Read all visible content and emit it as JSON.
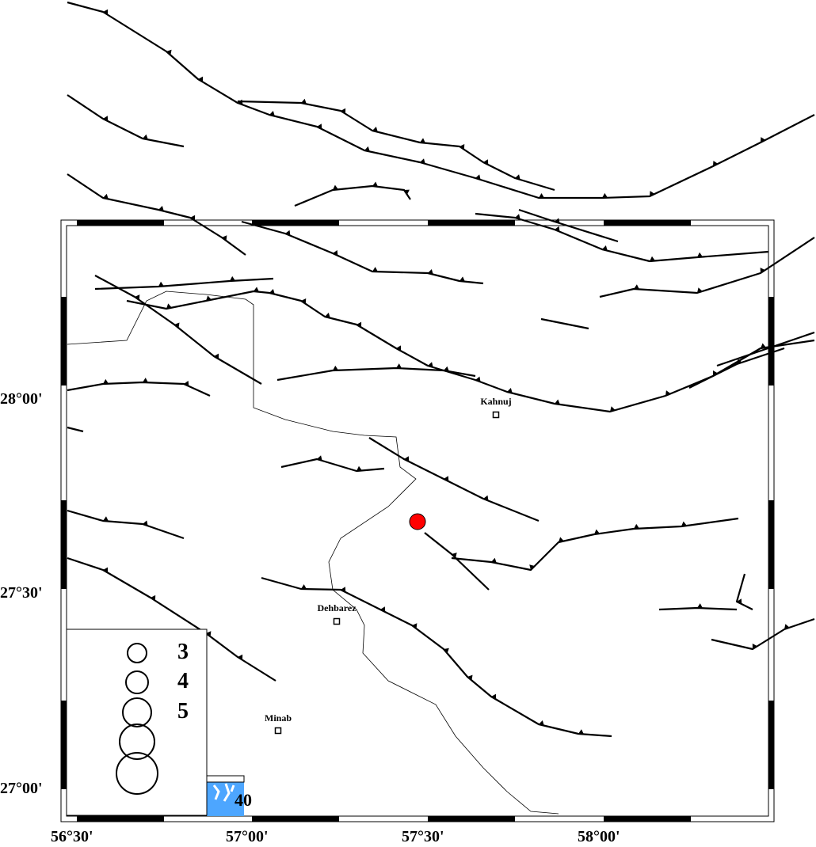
{
  "map": {
    "lon_ticks": [
      "56°30'",
      "57°00'",
      "57°30'",
      "58°00'"
    ],
    "lat_ticks": [
      "28°00'",
      "27°30'",
      "27°00'"
    ],
    "cities": [
      {
        "name": "Kahnuj"
      },
      {
        "name": "Dehbarez"
      },
      {
        "name": "Minab"
      }
    ],
    "epicenter_color": "#ff0000",
    "fault_color": "#000000",
    "border_color": "#000000",
    "sea_color": "#4da6ff",
    "inset_label": "40"
  },
  "legend": {
    "magnitudes": [
      "3",
      "4",
      "5"
    ],
    "circle_count": 5
  }
}
